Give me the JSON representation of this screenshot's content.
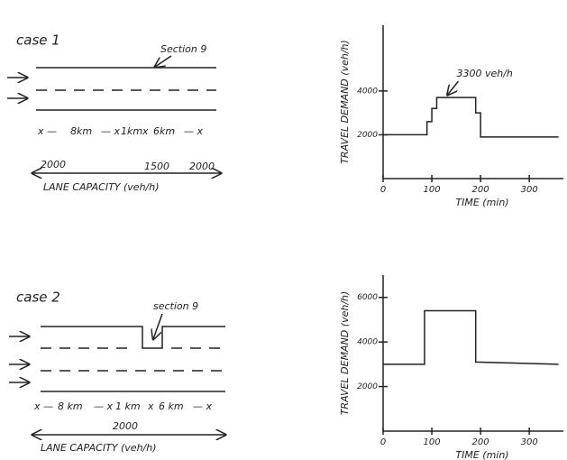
{
  "case_1": {
    "title": "case 1",
    "section": "Section 9",
    "distances": [
      "8km",
      "1km",
      "6km"
    ],
    "capacities": [
      "2000",
      "1500",
      "2000"
    ],
    "capacity_label": "LANE CAPACITY (veh/h)"
  },
  "case_2": {
    "title": "case 2",
    "section": "section 9",
    "distances": [
      "8 km",
      "1 km",
      "6 km"
    ],
    "capacities": [
      "2000"
    ],
    "capacity_label": "LANE CAPACITY (veh/h)"
  },
  "chart_data": [
    {
      "type": "line",
      "x_label": "TIME (min)",
      "y_label": "TRAVEL DEMAND (veh/h)",
      "annotation": "3300 veh/h",
      "color": "#222222",
      "x": [
        0,
        90,
        90,
        100,
        100,
        110,
        110,
        190,
        190,
        200,
        200,
        360
      ],
      "values": [
        2000,
        2000,
        2600,
        2600,
        3200,
        3200,
        3700,
        3700,
        3000,
        3000,
        1900,
        1900
      ],
      "xlim": [
        0,
        370
      ],
      "ylim": [
        0,
        7000
      ],
      "xticks": [
        0,
        100,
        200,
        300
      ],
      "yticks": [
        2000,
        4000
      ]
    },
    {
      "type": "line",
      "x_label": "TIME (min)",
      "y_label": "TRAVEL DEMAND (veh/h)",
      "color": "#222222",
      "x": [
        0,
        85,
        85,
        190,
        190,
        360
      ],
      "values": [
        3000,
        3000,
        5400,
        5400,
        3100,
        3000
      ],
      "xlim": [
        0,
        370
      ],
      "ylim": [
        0,
        7000
      ],
      "xticks": [
        0,
        100,
        200,
        300
      ],
      "yticks": [
        2000,
        4000,
        6000
      ]
    }
  ]
}
